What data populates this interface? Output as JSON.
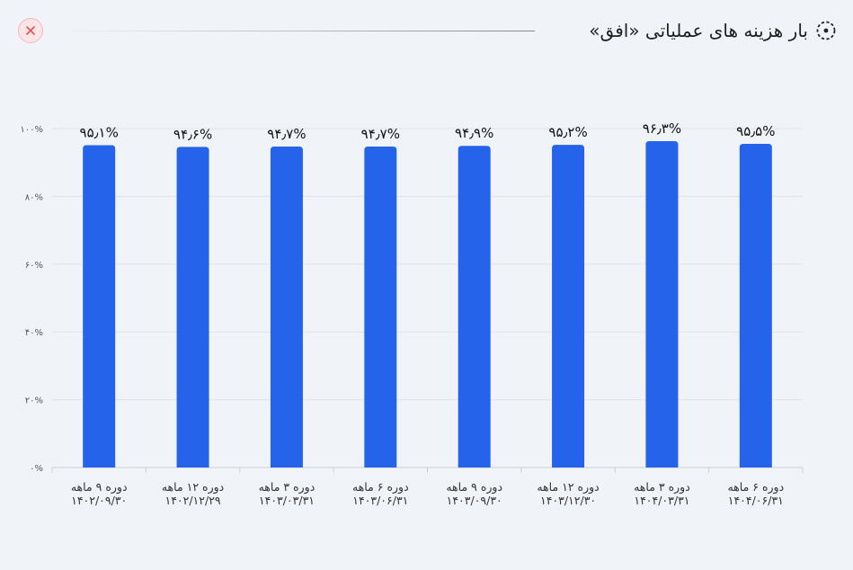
{
  "header": {
    "title": "بار هزینه های عملیاتی «افق»",
    "close_icon": "close-icon",
    "title_icon": "dashed-circle-icon"
  },
  "colors": {
    "bar": "#2563eb",
    "grid": "#dde3ec",
    "close": "#e8505b"
  },
  "chart_data": {
    "type": "bar",
    "title": "بار هزینه های عملیاتی «افق»",
    "categories": [
      [
        "دوره ۹ ماهه",
        "۱۴۰۲/۰۹/۳۰"
      ],
      [
        "دوره ۱۲ ماهه",
        "۱۴۰۲/۱۲/۲۹"
      ],
      [
        "دوره ۳ ماهه",
        "۱۴۰۳/۰۳/۳۱"
      ],
      [
        "دوره ۶ ماهه",
        "۱۴۰۳/۰۶/۳۱"
      ],
      [
        "دوره ۹ ماهه",
        "۱۴۰۳/۰۹/۳۰"
      ],
      [
        "دوره ۱۲ ماهه",
        "۱۴۰۳/۱۲/۳۰"
      ],
      [
        "دوره ۳ ماهه",
        "۱۴۰۴/۰۳/۳۱"
      ],
      [
        "دوره ۶ ماهه",
        "۱۴۰۴/۰۶/۳۱"
      ]
    ],
    "values": [
      95.1,
      94.6,
      94.7,
      94.7,
      94.9,
      95.2,
      96.3,
      95.5
    ],
    "value_labels": [
      "۹۵٫۱%",
      "۹۴٫۶%",
      "۹۴٫۷%",
      "۹۴٫۷%",
      "۹۴٫۹%",
      "۹۵٫۲%",
      "۹۶٫۳%",
      "۹۵٫۵%"
    ],
    "ylim": [
      0,
      100
    ],
    "yticks": [
      0,
      20,
      40,
      60,
      80,
      100
    ],
    "ytick_labels": [
      "۰%",
      "۲۰%",
      "۴۰%",
      "۶۰%",
      "۸۰%",
      "۱۰۰%"
    ],
    "grid": true,
    "legend": "none"
  }
}
